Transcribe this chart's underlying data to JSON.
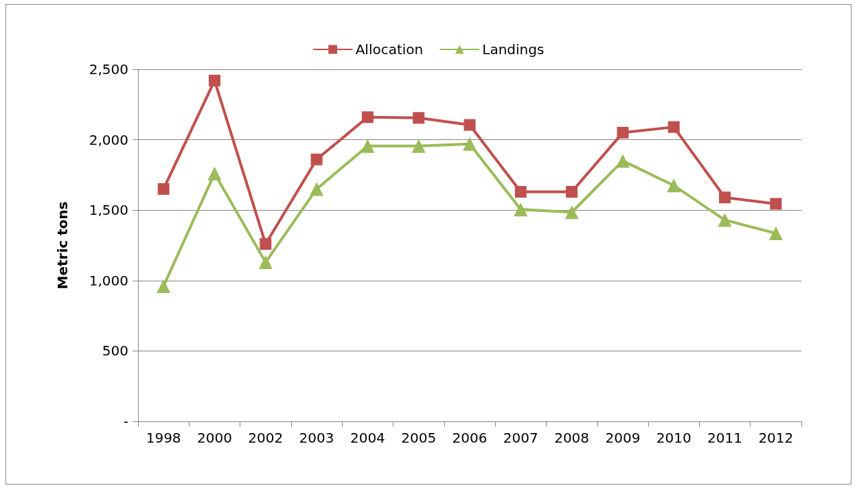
{
  "chart_data": {
    "type": "line",
    "ylabel": "Metric tons",
    "categories": [
      "1998",
      "2000",
      "2002",
      "2003",
      "2004",
      "2005",
      "2006",
      "2007",
      "2008",
      "2009",
      "2010",
      "2011",
      "2012"
    ],
    "series": [
      {
        "name": "Allocation",
        "color": "#c0504d",
        "marker": "square",
        "values": [
          1650,
          2420,
          1260,
          1860,
          2160,
          2155,
          2105,
          1630,
          1630,
          2050,
          2090,
          1590,
          1545
        ]
      },
      {
        "name": "Landings",
        "color": "#9bbb59",
        "marker": "triangle",
        "values": [
          960,
          1760,
          1130,
          1650,
          1955,
          1955,
          1970,
          1505,
          1485,
          1850,
          1675,
          1430,
          1335
        ]
      }
    ],
    "ylim": [
      0,
      2500
    ],
    "yticks": [
      {
        "value": 0,
        "label": "-"
      },
      {
        "value": 500,
        "label": "500"
      },
      {
        "value": 1000,
        "label": "1,000"
      },
      {
        "value": 1500,
        "label": "1,500"
      },
      {
        "value": 2000,
        "label": "2,000"
      },
      {
        "value": 2500,
        "label": "2,500"
      }
    ],
    "grid": "y",
    "legend": "top",
    "line_style": "solid"
  }
}
